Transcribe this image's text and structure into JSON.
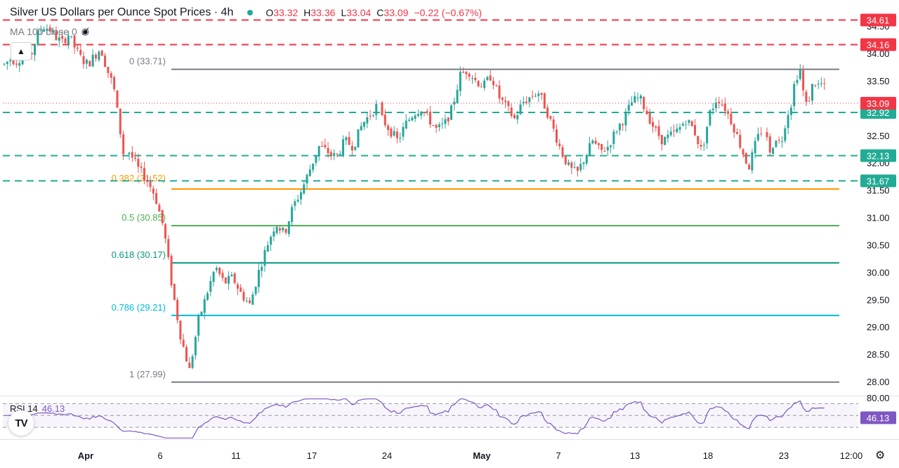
{
  "header": {
    "title": "Silver US Dollars per Ounce Spot Prices · 4h",
    "open_label": "O",
    "open": "33.32",
    "high_label": "H",
    "high": "33.36",
    "low_label": "L",
    "low": "33.04",
    "close_label": "C",
    "close": "33.09",
    "change": "−0.22 (−0.67%)"
  },
  "ma_label": "MA 100 close 0",
  "rsi": {
    "label": "RSI 14",
    "value": "46.13"
  },
  "logo_text": "TV",
  "icons": {
    "eye": "eye-off-icon",
    "collapse": "chevron-up-icon",
    "settings": "gear-icon"
  },
  "colors": {
    "up": "#26a69a",
    "down": "#ef5350",
    "resistance": "#f23645",
    "support": "#22ab94",
    "close_line": "#f23645",
    "fib_0": "#787b86",
    "fib_382": "#ff9800",
    "fib_5": "#4caf50",
    "fib_618": "#089981",
    "fib_786": "#00bcd4",
    "fib_1": "#787b86",
    "rsi": "#7e57c2"
  },
  "chart_data": {
    "type": "candlestick",
    "title": "Silver US Dollars per Ounce Spot Prices · 4h",
    "y_range": [
      27.6,
      35.0
    ],
    "y_ticks": [
      "28.00",
      "28.50",
      "29.00",
      "29.50",
      "30.00",
      "30.50",
      "31.00",
      "31.50",
      "32.00",
      "32.50",
      "33.00",
      "33.50",
      "34.00",
      "34.50"
    ],
    "x_ticks": [
      "Apr",
      "6",
      "11",
      "17",
      "24",
      "May",
      "7",
      "13",
      "18",
      "23",
      "12:00"
    ],
    "horizontal_levels": [
      {
        "label": "34.61",
        "value": 34.61,
        "style": "resistance"
      },
      {
        "label": "34.16",
        "value": 34.16,
        "style": "resistance"
      },
      {
        "label": "32.92",
        "value": 32.92,
        "style": "support"
      },
      {
        "label": "32.13",
        "value": 32.13,
        "style": "support"
      },
      {
        "label": "31.67",
        "value": 31.67,
        "style": "support"
      }
    ],
    "last_price": {
      "label": "33.09",
      "value": 33.09
    },
    "fibonacci": [
      {
        "label": "0 (33.71)",
        "value": 33.71,
        "key": "fib_0"
      },
      {
        "label": "0.382 (31.52)",
        "value": 31.52,
        "key": "fib_382"
      },
      {
        "label": "0.5 (30.85)",
        "value": 30.85,
        "key": "fib_5"
      },
      {
        "label": "0.618 (30.17)",
        "value": 30.17,
        "key": "fib_618"
      },
      {
        "label": "0.786 (29.21)",
        "value": 29.21,
        "key": "fib_786"
      },
      {
        "label": "1 (27.99)",
        "value": 27.99,
        "key": "fib_1"
      }
    ],
    "price_path": [
      [
        33.8,
        33.9,
        33.85,
        34.0,
        33.9,
        34.3,
        34.5,
        34.45,
        34.3,
        34.2,
        34.35,
        34.1,
        33.9,
        33.8,
        33.95,
        34.1,
        33.7,
        33.4,
        32.6,
        31.8
      ],
      [
        32.2,
        31.9,
        31.7,
        31.4,
        30.8,
        29.7,
        28.8,
        28.2,
        29.1,
        29.6,
        30.1,
        29.8,
        29.9,
        29.6,
        29.4,
        30.0,
        30.5,
        30.9,
        30.7,
        31.2,
        31.5,
        31.9,
        32.3,
        32.2,
        32.1,
        32.4,
        32.3,
        32.7,
        32.9,
        33.1
      ],
      [
        32.8,
        32.6,
        32.4,
        32.7,
        32.9,
        33.0,
        32.8,
        32.6,
        32.7,
        33.0,
        33.6,
        33.7,
        33.5,
        33.4,
        33.6,
        33.2,
        33.0,
        32.8,
        33.1,
        33.2,
        33.3,
        33.0,
        32.6,
        32.2,
        31.9,
        31.8,
        32.1,
        32.4,
        32.2,
        32.3,
        32.6,
        32.8,
        33.1,
        33.2,
        32.9,
        32.6,
        32.4,
        32.5,
        32.6,
        32.8,
        32.6,
        32.2,
        32.9,
        33.2,
        33.0,
        32.7,
        32.3,
        31.9,
        32.4,
        32.7
      ],
      [
        32.5,
        32.1,
        32.4,
        32.5,
        32.3,
        32.6,
        32.9,
        33.0,
        33.4,
        33.6,
        33.7,
        33.2,
        33.0,
        33.3,
        33.5,
        33.4,
        33.45,
        33.4,
        33.09
      ]
    ],
    "rsi": {
      "name": "RSI 14",
      "last": 46.13,
      "levels": [
        70,
        50,
        30
      ],
      "range": [
        10,
        80
      ],
      "tick": "80.00"
    }
  }
}
